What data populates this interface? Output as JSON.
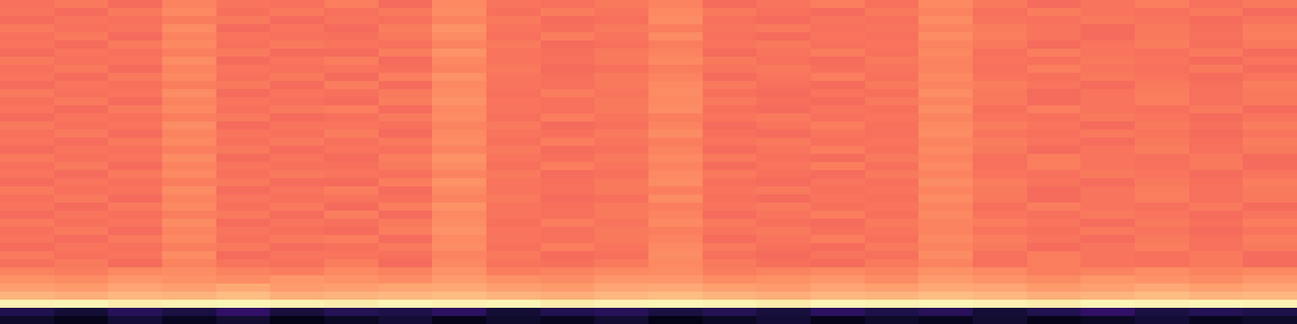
{
  "chart_data": {
    "type": "heatmap",
    "zlim": [
      0,
      1
    ],
    "tick_labels": false,
    "cells": [
      [
        0.7,
        0.72,
        0.69,
        0.74,
        0.71,
        0.7,
        0.73,
        0.69,
        0.75,
        0.71,
        0.7,
        0.72,
        0.74,
        0.69,
        0.71,
        0.73,
        0.7,
        0.75,
        0.72,
        0.69,
        0.71,
        0.73,
        0.7,
        0.72
      ],
      [
        0.71,
        0.69,
        0.72,
        0.75,
        0.7,
        0.72,
        0.7,
        0.72,
        0.76,
        0.7,
        0.73,
        0.71,
        0.75,
        0.72,
        0.7,
        0.69,
        0.72,
        0.74,
        0.7,
        0.73,
        0.71,
        0.7,
        0.72,
        0.69
      ],
      [
        0.69,
        0.71,
        0.7,
        0.73,
        0.72,
        0.69,
        0.71,
        0.7,
        0.74,
        0.72,
        0.69,
        0.7,
        0.76,
        0.7,
        0.69,
        0.71,
        0.7,
        0.76,
        0.71,
        0.7,
        0.72,
        0.71,
        0.69,
        0.71
      ],
      [
        0.72,
        0.7,
        0.71,
        0.76,
        0.69,
        0.71,
        0.69,
        0.73,
        0.77,
        0.71,
        0.7,
        0.72,
        0.73,
        0.71,
        0.72,
        0.7,
        0.71,
        0.74,
        0.73,
        0.71,
        0.69,
        0.72,
        0.7,
        0.73
      ],
      [
        0.7,
        0.72,
        0.69,
        0.74,
        0.71,
        0.7,
        0.7,
        0.72,
        0.76,
        0.7,
        0.73,
        0.71,
        0.76,
        0.7,
        0.69,
        0.71,
        0.7,
        0.76,
        0.73,
        0.71,
        0.69,
        0.72,
        0.7,
        0.73
      ],
      [
        0.71,
        0.69,
        0.72,
        0.75,
        0.7,
        0.72,
        0.71,
        0.7,
        0.74,
        0.72,
        0.69,
        0.7,
        0.73,
        0.71,
        0.72,
        0.7,
        0.71,
        0.74,
        0.72,
        0.69,
        0.71,
        0.73,
        0.7,
        0.72
      ],
      [
        0.69,
        0.71,
        0.7,
        0.73,
        0.72,
        0.69,
        0.69,
        0.73,
        0.77,
        0.71,
        0.7,
        0.72,
        0.74,
        0.69,
        0.71,
        0.73,
        0.7,
        0.75,
        0.7,
        0.73,
        0.71,
        0.7,
        0.72,
        0.69
      ],
      [
        0.72,
        0.7,
        0.71,
        0.76,
        0.69,
        0.71,
        0.73,
        0.69,
        0.75,
        0.71,
        0.7,
        0.72,
        0.75,
        0.72,
        0.7,
        0.69,
        0.72,
        0.74,
        0.71,
        0.7,
        0.72,
        0.71,
        0.69,
        0.71
      ],
      [
        0.7,
        0.72,
        0.69,
        0.74,
        0.71,
        0.7,
        0.71,
        0.7,
        0.74,
        0.72,
        0.69,
        0.7,
        0.73,
        0.71,
        0.72,
        0.7,
        0.71,
        0.74,
        0.7,
        0.73,
        0.71,
        0.7,
        0.72,
        0.69
      ],
      [
        0.71,
        0.69,
        0.72,
        0.75,
        0.7,
        0.72,
        0.69,
        0.73,
        0.77,
        0.71,
        0.7,
        0.72,
        0.74,
        0.69,
        0.71,
        0.73,
        0.7,
        0.75,
        0.71,
        0.7,
        0.72,
        0.71,
        0.69,
        0.71
      ],
      [
        0.69,
        0.71,
        0.7,
        0.73,
        0.72,
        0.69,
        0.73,
        0.69,
        0.75,
        0.71,
        0.7,
        0.72,
        0.75,
        0.72,
        0.7,
        0.69,
        0.72,
        0.74,
        0.73,
        0.71,
        0.69,
        0.72,
        0.7,
        0.73
      ],
      [
        0.72,
        0.7,
        0.71,
        0.76,
        0.69,
        0.71,
        0.7,
        0.72,
        0.76,
        0.7,
        0.73,
        0.71,
        0.76,
        0.7,
        0.69,
        0.71,
        0.7,
        0.76,
        0.72,
        0.69,
        0.71,
        0.73,
        0.7,
        0.72
      ],
      [
        0.7,
        0.72,
        0.69,
        0.74,
        0.71,
        0.7,
        0.69,
        0.73,
        0.77,
        0.71,
        0.7,
        0.72,
        0.75,
        0.72,
        0.7,
        0.69,
        0.72,
        0.74,
        0.72,
        0.69,
        0.71,
        0.73,
        0.7,
        0.72
      ],
      [
        0.71,
        0.69,
        0.72,
        0.75,
        0.7,
        0.72,
        0.73,
        0.69,
        0.75,
        0.71,
        0.7,
        0.72,
        0.76,
        0.7,
        0.69,
        0.71,
        0.7,
        0.76,
        0.7,
        0.73,
        0.71,
        0.7,
        0.72,
        0.69
      ],
      [
        0.69,
        0.71,
        0.7,
        0.73,
        0.72,
        0.69,
        0.7,
        0.72,
        0.76,
        0.7,
        0.73,
        0.71,
        0.73,
        0.71,
        0.72,
        0.7,
        0.71,
        0.74,
        0.71,
        0.7,
        0.72,
        0.71,
        0.69,
        0.71
      ],
      [
        0.72,
        0.7,
        0.71,
        0.76,
        0.69,
        0.71,
        0.71,
        0.7,
        0.74,
        0.72,
        0.69,
        0.7,
        0.74,
        0.69,
        0.71,
        0.73,
        0.7,
        0.75,
        0.73,
        0.71,
        0.69,
        0.72,
        0.7,
        0.73
      ],
      [
        0.7,
        0.72,
        0.69,
        0.74,
        0.71,
        0.7,
        0.73,
        0.69,
        0.75,
        0.71,
        0.7,
        0.72,
        0.76,
        0.7,
        0.69,
        0.71,
        0.7,
        0.76,
        0.71,
        0.7,
        0.72,
        0.71,
        0.69,
        0.71
      ],
      [
        0.71,
        0.69,
        0.72,
        0.75,
        0.7,
        0.72,
        0.7,
        0.72,
        0.76,
        0.7,
        0.73,
        0.71,
        0.73,
        0.71,
        0.72,
        0.7,
        0.71,
        0.74,
        0.73,
        0.71,
        0.69,
        0.72,
        0.7,
        0.73
      ],
      [
        0.69,
        0.71,
        0.7,
        0.73,
        0.72,
        0.69,
        0.71,
        0.7,
        0.74,
        0.72,
        0.69,
        0.7,
        0.74,
        0.69,
        0.71,
        0.73,
        0.7,
        0.75,
        0.72,
        0.69,
        0.71,
        0.73,
        0.7,
        0.72
      ],
      [
        0.72,
        0.7,
        0.71,
        0.76,
        0.69,
        0.71,
        0.69,
        0.73,
        0.77,
        0.71,
        0.7,
        0.72,
        0.75,
        0.72,
        0.7,
        0.69,
        0.72,
        0.74,
        0.7,
        0.73,
        0.71,
        0.7,
        0.72,
        0.69
      ],
      [
        0.7,
        0.72,
        0.69,
        0.74,
        0.71,
        0.7,
        0.7,
        0.72,
        0.76,
        0.7,
        0.73,
        0.71,
        0.74,
        0.69,
        0.71,
        0.73,
        0.7,
        0.75,
        0.7,
        0.73,
        0.71,
        0.7,
        0.72,
        0.69
      ],
      [
        0.71,
        0.69,
        0.72,
        0.75,
        0.7,
        0.72,
        0.71,
        0.7,
        0.74,
        0.72,
        0.69,
        0.7,
        0.75,
        0.72,
        0.7,
        0.69,
        0.72,
        0.74,
        0.71,
        0.7,
        0.72,
        0.71,
        0.69,
        0.71
      ],
      [
        0.69,
        0.71,
        0.7,
        0.73,
        0.72,
        0.69,
        0.69,
        0.73,
        0.77,
        0.71,
        0.7,
        0.72,
        0.76,
        0.7,
        0.69,
        0.71,
        0.7,
        0.76,
        0.73,
        0.71,
        0.69,
        0.72,
        0.7,
        0.73
      ],
      [
        0.72,
        0.7,
        0.71,
        0.76,
        0.69,
        0.71,
        0.73,
        0.69,
        0.75,
        0.71,
        0.7,
        0.72,
        0.73,
        0.71,
        0.72,
        0.7,
        0.71,
        0.74,
        0.72,
        0.69,
        0.71,
        0.73,
        0.7,
        0.72
      ],
      [
        0.7,
        0.72,
        0.69,
        0.74,
        0.71,
        0.7,
        0.71,
        0.7,
        0.74,
        0.72,
        0.69,
        0.7,
        0.76,
        0.7,
        0.69,
        0.71,
        0.7,
        0.76,
        0.72,
        0.69,
        0.71,
        0.73,
        0.7,
        0.72
      ],
      [
        0.71,
        0.69,
        0.72,
        0.75,
        0.7,
        0.72,
        0.69,
        0.73,
        0.77,
        0.71,
        0.7,
        0.72,
        0.73,
        0.71,
        0.72,
        0.7,
        0.71,
        0.74,
        0.7,
        0.73,
        0.71,
        0.7,
        0.72,
        0.69
      ],
      [
        0.69,
        0.71,
        0.7,
        0.73,
        0.72,
        0.69,
        0.73,
        0.69,
        0.75,
        0.71,
        0.7,
        0.72,
        0.74,
        0.69,
        0.71,
        0.73,
        0.7,
        0.75,
        0.71,
        0.7,
        0.72,
        0.71,
        0.69,
        0.71
      ],
      [
        0.72,
        0.7,
        0.71,
        0.76,
        0.69,
        0.71,
        0.7,
        0.72,
        0.76,
        0.7,
        0.73,
        0.71,
        0.75,
        0.72,
        0.7,
        0.69,
        0.72,
        0.74,
        0.73,
        0.71,
        0.69,
        0.72,
        0.7,
        0.73
      ],
      [
        0.7,
        0.72,
        0.69,
        0.74,
        0.71,
        0.7,
        0.69,
        0.73,
        0.77,
        0.71,
        0.7,
        0.72,
        0.73,
        0.71,
        0.72,
        0.7,
        0.71,
        0.74,
        0.71,
        0.7,
        0.72,
        0.71,
        0.69,
        0.71
      ],
      [
        0.71,
        0.69,
        0.72,
        0.75,
        0.7,
        0.72,
        0.73,
        0.69,
        0.75,
        0.71,
        0.7,
        0.72,
        0.74,
        0.69,
        0.71,
        0.73,
        0.7,
        0.75,
        0.73,
        0.71,
        0.69,
        0.72,
        0.7,
        0.73
      ],
      [
        0.69,
        0.71,
        0.7,
        0.73,
        0.72,
        0.69,
        0.7,
        0.72,
        0.76,
        0.7,
        0.73,
        0.71,
        0.75,
        0.72,
        0.7,
        0.69,
        0.72,
        0.74,
        0.72,
        0.69,
        0.71,
        0.73,
        0.7,
        0.72
      ],
      [
        0.72,
        0.7,
        0.71,
        0.76,
        0.69,
        0.71,
        0.71,
        0.7,
        0.74,
        0.72,
        0.69,
        0.7,
        0.76,
        0.7,
        0.69,
        0.71,
        0.7,
        0.76,
        0.7,
        0.73,
        0.71,
        0.7,
        0.72,
        0.69
      ],
      [
        0.7,
        0.72,
        0.69,
        0.74,
        0.71,
        0.7,
        0.73,
        0.69,
        0.75,
        0.71,
        0.7,
        0.72,
        0.75,
        0.72,
        0.7,
        0.69,
        0.72,
        0.74,
        0.7,
        0.73,
        0.71,
        0.7,
        0.72,
        0.69
      ],
      [
        0.74,
        0.73,
        0.75,
        0.76,
        0.74,
        0.73,
        0.75,
        0.74,
        0.77,
        0.73,
        0.74,
        0.75,
        0.76,
        0.73,
        0.74,
        0.75,
        0.74,
        0.77,
        0.75,
        0.73,
        0.74,
        0.76,
        0.74,
        0.75
      ],
      [
        0.77,
        0.76,
        0.78,
        0.77,
        0.76,
        0.78,
        0.77,
        0.76,
        0.79,
        0.77,
        0.76,
        0.78,
        0.78,
        0.76,
        0.77,
        0.78,
        0.76,
        0.79,
        0.77,
        0.76,
        0.78,
        0.77,
        0.76,
        0.78
      ],
      [
        0.8,
        0.79,
        0.81,
        0.8,
        0.82,
        0.79,
        0.8,
        0.81,
        0.82,
        0.8,
        0.79,
        0.81,
        0.82,
        0.8,
        0.79,
        0.81,
        0.8,
        0.82,
        0.81,
        0.79,
        0.8,
        0.82,
        0.8,
        0.81
      ],
      [
        0.84,
        0.83,
        0.85,
        0.84,
        0.86,
        0.83,
        0.84,
        0.85,
        0.86,
        0.84,
        0.83,
        0.85,
        0.86,
        0.84,
        0.83,
        0.85,
        0.84,
        0.86,
        0.85,
        0.83,
        0.84,
        0.86,
        0.84,
        0.85
      ],
      [
        0.97,
        0.98,
        0.96,
        0.97,
        0.98,
        0.97,
        0.96,
        0.98,
        0.97,
        0.98,
        0.96,
        0.97,
        0.98,
        0.97,
        0.96,
        0.98,
        0.97,
        0.98,
        0.97,
        0.96,
        0.98,
        0.97,
        0.98,
        0.97
      ],
      [
        0.14,
        0.1,
        0.16,
        0.12,
        0.18,
        0.11,
        0.15,
        0.13,
        0.17,
        0.1,
        0.14,
        0.16,
        0.12,
        0.15,
        0.11,
        0.17,
        0.13,
        0.16,
        0.1,
        0.14,
        0.18,
        0.12,
        0.15,
        0.13
      ],
      [
        0.08,
        0.05,
        0.1,
        0.06,
        0.09,
        0.04,
        0.07,
        0.1,
        0.05,
        0.08,
        0.06,
        0.09,
        0.04,
        0.07,
        0.1,
        0.05,
        0.08,
        0.06,
        0.09,
        0.05,
        0.07,
        0.1,
        0.06,
        0.08
      ]
    ]
  }
}
